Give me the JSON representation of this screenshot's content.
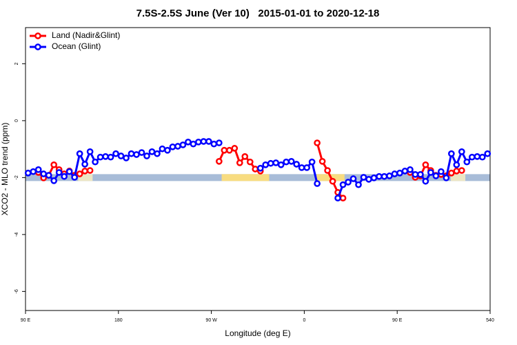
{
  "chart_data": {
    "type": "line",
    "title": "7.5S-2.5S June (Ver 10)   2015-01-01 to 2020-12-18",
    "x_label": "Longitude (deg E)",
    "y_label": "XCO2 - MLO trend (ppm)",
    "xlim": [
      90,
      540
    ],
    "ylim": [
      -6.67,
      3.27
    ],
    "xticks": [
      {
        "value": 90,
        "label": "90 E"
      },
      180,
      {
        "value": 270,
        "label": "90 W"
      },
      {
        "value": 360,
        "label": "0"
      },
      {
        "value": 450,
        "label": "90 E"
      },
      540
    ],
    "yticks": [
      2,
      0,
      -2,
      -4,
      -6
    ],
    "legend": "top-left",
    "band": {
      "y": -2,
      "color": "#a8bcd8",
      "segments": [
        {
          "x0": 141,
          "x1": 155,
          "color": "#ece6c4"
        },
        {
          "x0": 280,
          "x1": 326,
          "color": "#f8dc80"
        },
        {
          "x0": 372,
          "x1": 399,
          "color": "#f8dc80"
        },
        {
          "x0": 502,
          "x1": 516,
          "color": "#ece6c4"
        }
      ]
    },
    "series": [
      {
        "name": "Land (Nadir&Glint)",
        "color": "#ff0000",
        "x": [
          102.5,
          107.5,
          112.5,
          117.5,
          122.5,
          127.5,
          132.5,
          137.5,
          142.5,
          147.5,
          152.5,
          157.5,
          277.5,
          282.5,
          287.5,
          292.5,
          297.5,
          302.5,
          307.5,
          312.5,
          317.5,
          322.5,
          372.5,
          377.5,
          382.5,
          387.5,
          392.5,
          397.5,
          402.5,
          462.5,
          467.5,
          472.5,
          477.5,
          482.5,
          487.5,
          492.5,
          497.5,
          502.5,
          507.5,
          512.5
        ],
        "values": [
          -1.82,
          -2.01,
          -1.92,
          -1.55,
          -1.72,
          -1.87,
          -1.77,
          -1.92,
          -1.87,
          -1.77,
          -1.75,
          null,
          -1.43,
          -1.04,
          -1.04,
          -0.97,
          -1.48,
          -1.26,
          -1.45,
          -1.7,
          -1.77,
          null,
          -0.78,
          -1.43,
          -1.75,
          -2.13,
          -2.52,
          -2.72,
          null,
          -1.82,
          -1.99,
          -1.94,
          -1.55,
          -1.75,
          -1.92,
          -1.89,
          -1.94,
          -1.84,
          -1.77,
          -1.75
        ]
      },
      {
        "name": "Ocean (Glint)",
        "color": "#0000ff",
        "x": [
          92.5,
          97.5,
          102.5,
          107.5,
          112.5,
          117.5,
          122.5,
          127.5,
          132.5,
          137.5,
          142.5,
          147.5,
          152.5,
          157.5,
          162.5,
          167.5,
          172.5,
          177.5,
          182.5,
          187.5,
          192.5,
          197.5,
          202.5,
          207.5,
          212.5,
          217.5,
          222.5,
          227.5,
          232.5,
          237.5,
          242.5,
          247.5,
          252.5,
          257.5,
          262.5,
          267.5,
          272.5,
          277.5,
          282.5,
          317.5,
          322.5,
          327.5,
          332.5,
          337.5,
          342.5,
          347.5,
          352.5,
          357.5,
          362.5,
          367.5,
          372.5,
          377.5,
          392.5,
          397.5,
          402.5,
          407.5,
          412.5,
          417.5,
          422.5,
          427.5,
          432.5,
          437.5,
          442.5,
          447.5,
          452.5,
          457.5,
          462.5,
          467.5,
          472.5,
          477.5,
          482.5,
          487.5,
          492.5,
          497.5,
          502.5,
          507.5,
          512.5,
          517.5,
          522.5,
          527.5,
          532.5,
          537.5
        ],
        "values": [
          -1.84,
          -1.79,
          -1.72,
          -1.87,
          -1.92,
          -2.11,
          -1.82,
          -1.96,
          -1.79,
          -1.99,
          -1.16,
          -1.53,
          -1.09,
          -1.45,
          -1.28,
          -1.26,
          -1.28,
          -1.16,
          -1.24,
          -1.31,
          -1.16,
          -1.19,
          -1.12,
          -1.24,
          -1.09,
          -1.16,
          -0.99,
          -1.04,
          -0.92,
          -0.9,
          -0.85,
          -0.75,
          -0.82,
          -0.75,
          -0.73,
          -0.73,
          -0.82,
          -0.78,
          null,
          -1.67,
          -1.55,
          -1.5,
          -1.48,
          -1.55,
          -1.45,
          -1.43,
          -1.53,
          -1.65,
          -1.65,
          -1.45,
          -2.21,
          null,
          -2.72,
          -2.25,
          -2.16,
          -2.04,
          -2.25,
          -1.99,
          -2.06,
          -2.01,
          -1.96,
          -1.96,
          -1.94,
          -1.87,
          -1.84,
          -1.77,
          -1.72,
          -1.89,
          -1.89,
          -2.13,
          -1.82,
          -1.94,
          -1.79,
          -2.01,
          -1.16,
          -1.55,
          -1.09,
          -1.45,
          -1.28,
          -1.26,
          -1.28,
          -1.16
        ]
      }
    ]
  }
}
